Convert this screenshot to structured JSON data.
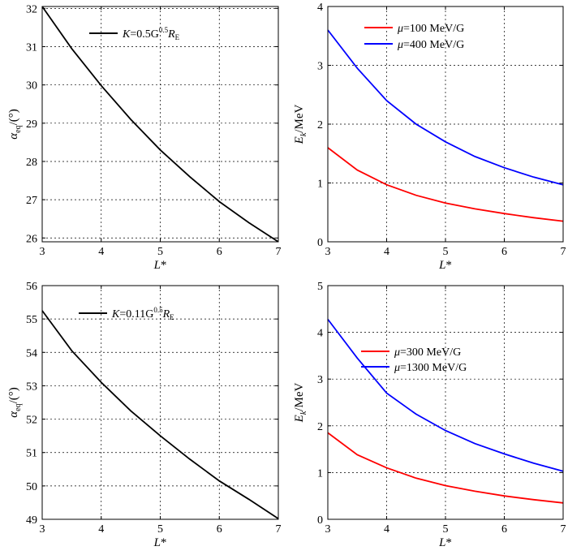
{
  "chart_data": [
    {
      "type": "line",
      "panel": "top-left",
      "xlim": [
        3,
        7
      ],
      "ylim": [
        25.9,
        32.05
      ],
      "xticks": [
        "3",
        "4",
        "5",
        "6",
        "7"
      ],
      "yticks": [
        "26",
        "27",
        "28",
        "29",
        "30",
        "31",
        "32"
      ],
      "xlabel": {
        "main": "L",
        "suffix": "*"
      },
      "ylabel": {
        "symbol": "α",
        "sub": "eq",
        "rest": "/(°)"
      },
      "grid": true,
      "legend_position": "top-right",
      "legend": [
        {
          "prefix": "K",
          "value": "=0.5G",
          "sup": "0.5",
          "unit": "R",
          "unit_sub": "E"
        }
      ],
      "series": [
        {
          "name": "K=0.5G^0.5 R_E",
          "color": "#000000",
          "x": [
            3,
            3.5,
            4,
            4.5,
            5,
            5.5,
            6,
            6.5,
            7
          ],
          "y": [
            32.05,
            30.95,
            29.98,
            29.1,
            28.3,
            27.6,
            26.95,
            26.4,
            25.9
          ]
        }
      ]
    },
    {
      "type": "line",
      "panel": "top-right",
      "xlim": [
        3,
        7
      ],
      "ylim": [
        0,
        4
      ],
      "xticks": [
        "3",
        "4",
        "5",
        "6",
        "7"
      ],
      "yticks": [
        "0",
        "1",
        "2",
        "3",
        "4"
      ],
      "xlabel": {
        "main": "L",
        "suffix": "*"
      },
      "ylabel": {
        "symbol": "E",
        "sub": "k",
        "rest": "/MeV"
      },
      "grid": true,
      "legend_position": "top-right",
      "legend": [
        {
          "prefix": "μ",
          "value": "=100 MeV/G"
        },
        {
          "prefix": "μ",
          "value": "=400 MeV/G"
        }
      ],
      "series": [
        {
          "name": "μ=100 MeV/G",
          "color": "#ff0000",
          "x": [
            3,
            3.5,
            4,
            4.5,
            5,
            5.5,
            6,
            6.5,
            7
          ],
          "y": [
            1.6,
            1.22,
            0.97,
            0.79,
            0.66,
            0.56,
            0.48,
            0.41,
            0.35
          ]
        },
        {
          "name": "μ=400 MeV/G",
          "color": "#0000ff",
          "x": [
            3,
            3.5,
            4,
            4.5,
            5,
            5.5,
            6,
            6.5,
            7
          ],
          "y": [
            3.6,
            2.95,
            2.4,
            2.0,
            1.7,
            1.45,
            1.26,
            1.1,
            0.97
          ]
        }
      ]
    },
    {
      "type": "line",
      "panel": "bottom-left",
      "xlim": [
        3,
        7
      ],
      "ylim": [
        49,
        56
      ],
      "xticks": [
        "3",
        "4",
        "5",
        "6",
        "7"
      ],
      "yticks": [
        "49",
        "50",
        "51",
        "52",
        "53",
        "54",
        "55",
        "56"
      ],
      "xlabel": {
        "main": "L",
        "suffix": "*"
      },
      "ylabel": {
        "symbol": "α",
        "sub": "eq",
        "rest": "/(°)"
      },
      "grid": true,
      "legend_position": "top-right",
      "legend": [
        {
          "prefix": "K",
          "value": "=0.11G",
          "sup": "0.5",
          "unit": "R",
          "unit_sub": "E"
        }
      ],
      "series": [
        {
          "name": "K=0.11G^0.5 R_E",
          "color": "#000000",
          "x": [
            3,
            3.5,
            4,
            4.5,
            5,
            5.5,
            6,
            6.5,
            7
          ],
          "y": [
            55.25,
            54.05,
            53.1,
            52.25,
            51.5,
            50.8,
            50.15,
            49.6,
            49.02
          ]
        }
      ]
    },
    {
      "type": "line",
      "panel": "bottom-right",
      "xlim": [
        3,
        7
      ],
      "ylim": [
        0,
        5
      ],
      "xticks": [
        "3",
        "4",
        "5",
        "6",
        "7"
      ],
      "yticks": [
        "0",
        "1",
        "2",
        "3",
        "4",
        "5"
      ],
      "xlabel": {
        "main": "L",
        "suffix": "*"
      },
      "ylabel": {
        "symbol": "E",
        "sub": "k",
        "rest": "/MeV"
      },
      "grid": true,
      "legend_position": "top-right",
      "legend": [
        {
          "prefix": "μ",
          "value": "=300 MeV/G"
        },
        {
          "prefix": "μ",
          "value": "=1300 MeV/G"
        }
      ],
      "series": [
        {
          "name": "μ=300 MeV/G",
          "color": "#ff0000",
          "x": [
            3,
            3.5,
            4,
            4.5,
            5,
            5.5,
            6,
            6.5,
            7
          ],
          "y": [
            1.85,
            1.38,
            1.1,
            0.88,
            0.72,
            0.6,
            0.5,
            0.42,
            0.35
          ]
        },
        {
          "name": "μ=1300 MeV/G",
          "color": "#0000ff",
          "x": [
            3,
            3.5,
            4,
            4.5,
            5,
            5.5,
            6,
            6.5,
            7
          ],
          "y": [
            4.28,
            3.45,
            2.7,
            2.25,
            1.9,
            1.62,
            1.4,
            1.2,
            1.03
          ]
        }
      ]
    }
  ]
}
